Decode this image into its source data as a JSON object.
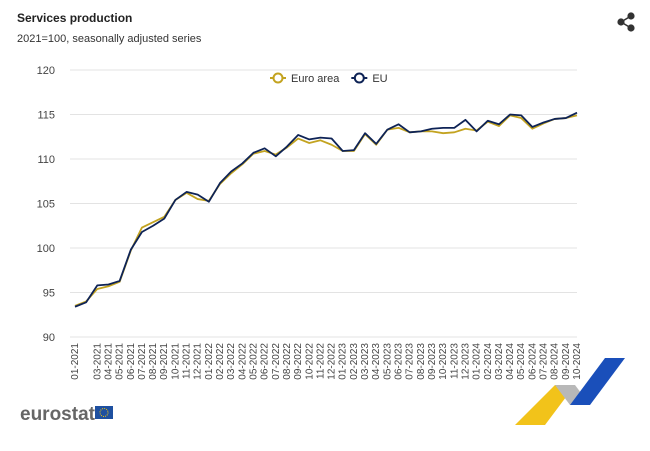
{
  "title": "Services production",
  "subtitle": "2021=100, seasonally adjusted series",
  "logo": "eurostat",
  "chart_data": {
    "type": "line",
    "categories": [
      "01-2021",
      null,
      "03-2021",
      "04-2021",
      "05-2021",
      "06-2021",
      "07-2021",
      "08-2021",
      "09-2021",
      "10-2021",
      "11-2021",
      "12-2021",
      "01-2022",
      "02-2022",
      "03-2022",
      "04-2022",
      "05-2022",
      "06-2022",
      "07-2022",
      "08-2022",
      "09-2022",
      "10-2022",
      "11-2022",
      "12-2022",
      "01-2023",
      "02-2023",
      "03-2023",
      "04-2023",
      "05-2023",
      "06-2023",
      "07-2023",
      "08-2023",
      "09-2023",
      "10-2023",
      "11-2023",
      "12-2023",
      "01-2024",
      "02-2024",
      "03-2024",
      "04-2024",
      "05-2024",
      "06-2024",
      "07-2024",
      "08-2024",
      "09-2024",
      "10-2024"
    ],
    "series": [
      {
        "name": "Euro area",
        "color": "#c3a320",
        "values": [
          93.5,
          94.0,
          95.4,
          95.7,
          96.2,
          99.7,
          102.3,
          102.9,
          103.5,
          105.4,
          106.2,
          105.5,
          105.3,
          107.2,
          108.4,
          109.4,
          110.6,
          110.9,
          110.5,
          111.3,
          112.3,
          111.8,
          112.1,
          111.6,
          110.9,
          110.9,
          112.8,
          111.6,
          113.3,
          113.5,
          113.0,
          113.1,
          113.1,
          112.9,
          113.0,
          113.4,
          113.2,
          114.2,
          113.7,
          114.9,
          114.6,
          113.4,
          114.0,
          114.5,
          114.6,
          114.9
        ]
      },
      {
        "name": "EU",
        "color": "#0e2356",
        "values": [
          93.4,
          93.9,
          95.8,
          95.9,
          96.3,
          99.8,
          101.8,
          102.5,
          103.3,
          105.4,
          106.3,
          106.0,
          105.2,
          107.3,
          108.6,
          109.5,
          110.7,
          111.2,
          110.3,
          111.4,
          112.7,
          112.2,
          112.4,
          112.3,
          110.9,
          111.0,
          112.9,
          111.7,
          113.3,
          113.9,
          113.0,
          113.1,
          113.4,
          113.5,
          113.5,
          114.4,
          113.1,
          114.3,
          113.9,
          115.0,
          114.9,
          113.6,
          114.1,
          114.5,
          114.6,
          115.2
        ]
      }
    ],
    "ylim": [
      90,
      120
    ],
    "yticks": [
      90,
      95,
      100,
      105,
      110,
      115,
      120
    ],
    "grid": true,
    "legend": "top"
  }
}
